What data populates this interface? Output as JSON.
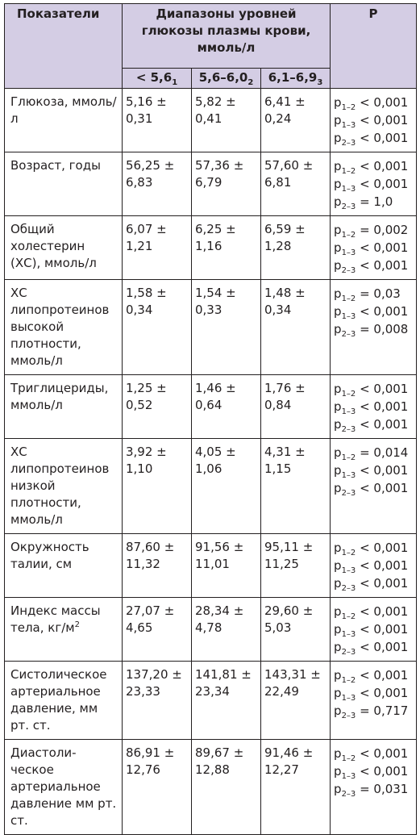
{
  "header": {
    "indicators": "Показатели",
    "ranges": "Диапазоны уровней глюкозы плазмы крови, ммоль/л",
    "p": "P",
    "sub": [
      {
        "label": "< 5,6",
        "index": "1"
      },
      {
        "label": "5,6–6,0",
        "index": "2"
      },
      {
        "label": "6,1–6,9",
        "index": "3"
      }
    ]
  },
  "rows": [
    {
      "name": "Глюкоза, ммоль/л",
      "v1": "5,16 ± 0,31",
      "v2": "5,82 ± 0,41",
      "v3": "6,41 ± 0,24",
      "p": [
        {
          "idx": "1–2",
          "val": " < 0,001"
        },
        {
          "idx": "1–3",
          "val": " < 0,001"
        },
        {
          "idx": "2–3",
          "val": " < 0,001"
        }
      ]
    },
    {
      "name": "Возраст, годы",
      "v1": "56,25 ± 6,83",
      "v2": "57,36 ± 6,79",
      "v3": "57,60 ± 6,81",
      "p": [
        {
          "idx": "1–2",
          "val": " < 0,001"
        },
        {
          "idx": "1–3",
          "val": " < 0,001"
        },
        {
          "idx": "2–3",
          "val": " = 1,0"
        }
      ]
    },
    {
      "name": "Общий холестерин (ХС), ммоль/л",
      "v1": "6,07 ± 1,21",
      "v2": "6,25 ± 1,16",
      "v3": "6,59 ± 1,28",
      "p": [
        {
          "idx": "1–2",
          "val": " = 0,002"
        },
        {
          "idx": "1–3",
          "val": " < 0,001"
        },
        {
          "idx": "2–3",
          "val": " < 0,001"
        }
      ]
    },
    {
      "name": "ХС липопротеинов высокой плотности, ммоль/л",
      "v1": "1,58 ± 0,34",
      "v2": "1,54 ± 0,33",
      "v3": "1,48 ± 0,34",
      "p": [
        {
          "idx": "1–2",
          "val": " = 0,03"
        },
        {
          "idx": "1–3",
          "val": " < 0,001"
        },
        {
          "idx": "2–3",
          "val": " = 0,008"
        }
      ]
    },
    {
      "name": "Триглицериды, ммоль/л",
      "v1": "1,25 ± 0,52",
      "v2": "1,46 ± 0,64",
      "v3": "1,76 ± 0,84",
      "p": [
        {
          "idx": "1–2",
          "val": " < 0,001"
        },
        {
          "idx": "1–3",
          "val": " < 0,001"
        },
        {
          "idx": "2–3",
          "val": " < 0,001"
        }
      ]
    },
    {
      "name": "ХС липопротеинов низкой плотности, ммоль/л",
      "v1": "3,92 ± 1,10",
      "v2": "4,05 ± 1,06",
      "v3": "4,31 ± 1,15",
      "p": [
        {
          "idx": "1–2",
          "val": " = 0,014"
        },
        {
          "idx": "1–3",
          "val": " < 0,001"
        },
        {
          "idx": "2–3",
          "val": " < 0,001"
        }
      ]
    },
    {
      "name": "Окружность талии, см",
      "v1": "87,60 ± 11,32",
      "v2": "91,56 ± 11,01",
      "v3": "95,11 ± 11,25",
      "p": [
        {
          "idx": "1–2",
          "val": " < 0,001"
        },
        {
          "idx": "1–3",
          "val": " < 0,001"
        },
        {
          "idx": "2–3",
          "val": " < 0,001"
        }
      ]
    },
    {
      "name": "Индекс массы тела, кг/м",
      "name_sup": "2",
      "v1": "27,07 ± 4,65",
      "v2": "28,34 ± 4,78",
      "v3": "29,60 ± 5,03",
      "p": [
        {
          "idx": "1–2",
          "val": " < 0,001"
        },
        {
          "idx": "1–3",
          "val": " < 0,001"
        },
        {
          "idx": "2–3",
          "val": " < 0,001"
        }
      ]
    },
    {
      "name": "Систолическое артериальное давление, мм рт. ст.",
      "v1": "137,20 ± 23,33",
      "v2": "141,81 ± 23,34",
      "v3": "143,31 ± 22,49",
      "p": [
        {
          "idx": "1–2",
          "val": " < 0,001"
        },
        {
          "idx": "1–3",
          "val": " < 0,001"
        },
        {
          "idx": "2–3",
          "val": " = 0,717"
        }
      ]
    },
    {
      "name": "Диастоли-ческое артериальное давление мм рт. ст.",
      "v1": "86,91 ± 12,76",
      "v2": "89,67 ± 12,88",
      "v3": "91,46 ± 12,27",
      "p": [
        {
          "idx": "1–2",
          "val": " < 0,001"
        },
        {
          "idx": "1–3",
          "val": " < 0,001"
        },
        {
          "idx": "2–3",
          "val": " = 0,031"
        }
      ]
    }
  ]
}
